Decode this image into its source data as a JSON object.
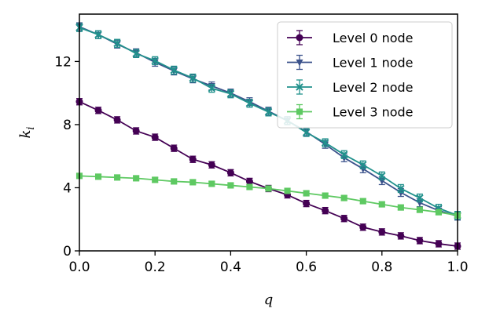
{
  "chart_data": {
    "type": "line",
    "title": "",
    "xlabel": "q",
    "ylabel": "k",
    "ylabel_subscript": "i",
    "xlim": [
      0.0,
      1.0
    ],
    "ylim": [
      0,
      15
    ],
    "xticks": [
      0.0,
      0.2,
      0.4,
      0.6,
      0.8,
      1.0
    ],
    "xtick_labels": [
      "0.0",
      "0.2",
      "0.4",
      "0.6",
      "0.8",
      "1.0"
    ],
    "yticks": [
      0,
      4,
      8,
      12
    ],
    "ytick_labels": [
      "0",
      "4",
      "8",
      "12"
    ],
    "grid": false,
    "legend_position": "top-right",
    "x": [
      0.0,
      0.05,
      0.1,
      0.15,
      0.2,
      0.25,
      0.3,
      0.35,
      0.4,
      0.45,
      0.5,
      0.55,
      0.6,
      0.65,
      0.7,
      0.75,
      0.8,
      0.85,
      0.9,
      0.95,
      1.0
    ],
    "series": [
      {
        "name": "Level 0 node",
        "color": "#440154",
        "marker": "circle",
        "values": [
          9.45,
          8.9,
          8.3,
          7.6,
          7.2,
          6.5,
          5.8,
          5.45,
          4.95,
          4.4,
          3.95,
          3.55,
          3.0,
          2.55,
          2.05,
          1.5,
          1.2,
          0.95,
          0.65,
          0.45,
          0.3
        ],
        "errors": [
          0.2,
          0.2,
          0.2,
          0.2,
          0.2,
          0.2,
          0.2,
          0.2,
          0.2,
          0.2,
          0.2,
          0.2,
          0.2,
          0.2,
          0.2,
          0.2,
          0.2,
          0.2,
          0.2,
          0.2,
          0.2
        ]
      },
      {
        "name": "Level 1 node",
        "color": "#3b528b",
        "marker": "triangle-down",
        "values": [
          14.2,
          13.7,
          13.1,
          12.55,
          11.95,
          11.4,
          10.9,
          10.45,
          10.0,
          9.45,
          8.85,
          8.25,
          7.55,
          6.75,
          5.9,
          5.2,
          4.45,
          3.7,
          3.05,
          2.55,
          2.2
        ],
        "errors": [
          0.25,
          0.25,
          0.25,
          0.25,
          0.25,
          0.25,
          0.25,
          0.25,
          0.25,
          0.25,
          0.25,
          0.25,
          0.25,
          0.25,
          0.25,
          0.25,
          0.25,
          0.25,
          0.25,
          0.25,
          0.25
        ]
      },
      {
        "name": "Level 2 node",
        "color": "#21918c",
        "marker": "x",
        "values": [
          14.15,
          13.7,
          13.15,
          12.5,
          12.05,
          11.45,
          10.95,
          10.3,
          9.95,
          9.35,
          8.8,
          8.25,
          7.5,
          6.85,
          6.1,
          5.45,
          4.75,
          3.95,
          3.35,
          2.7,
          2.25
        ],
        "errors": [
          0.25,
          0.25,
          0.25,
          0.25,
          0.25,
          0.25,
          0.25,
          0.25,
          0.25,
          0.25,
          0.25,
          0.25,
          0.25,
          0.25,
          0.25,
          0.25,
          0.25,
          0.25,
          0.25,
          0.25,
          0.25
        ]
      },
      {
        "name": "Level 3 node",
        "color": "#5ec962",
        "marker": "square",
        "values": [
          4.75,
          4.7,
          4.65,
          4.6,
          4.5,
          4.4,
          4.35,
          4.25,
          4.15,
          4.05,
          3.95,
          3.8,
          3.65,
          3.5,
          3.35,
          3.15,
          2.95,
          2.75,
          2.6,
          2.45,
          2.25
        ],
        "errors": [
          0.15,
          0.15,
          0.15,
          0.15,
          0.15,
          0.15,
          0.15,
          0.15,
          0.15,
          0.15,
          0.15,
          0.15,
          0.15,
          0.15,
          0.15,
          0.15,
          0.15,
          0.15,
          0.15,
          0.15,
          0.15
        ]
      }
    ]
  }
}
